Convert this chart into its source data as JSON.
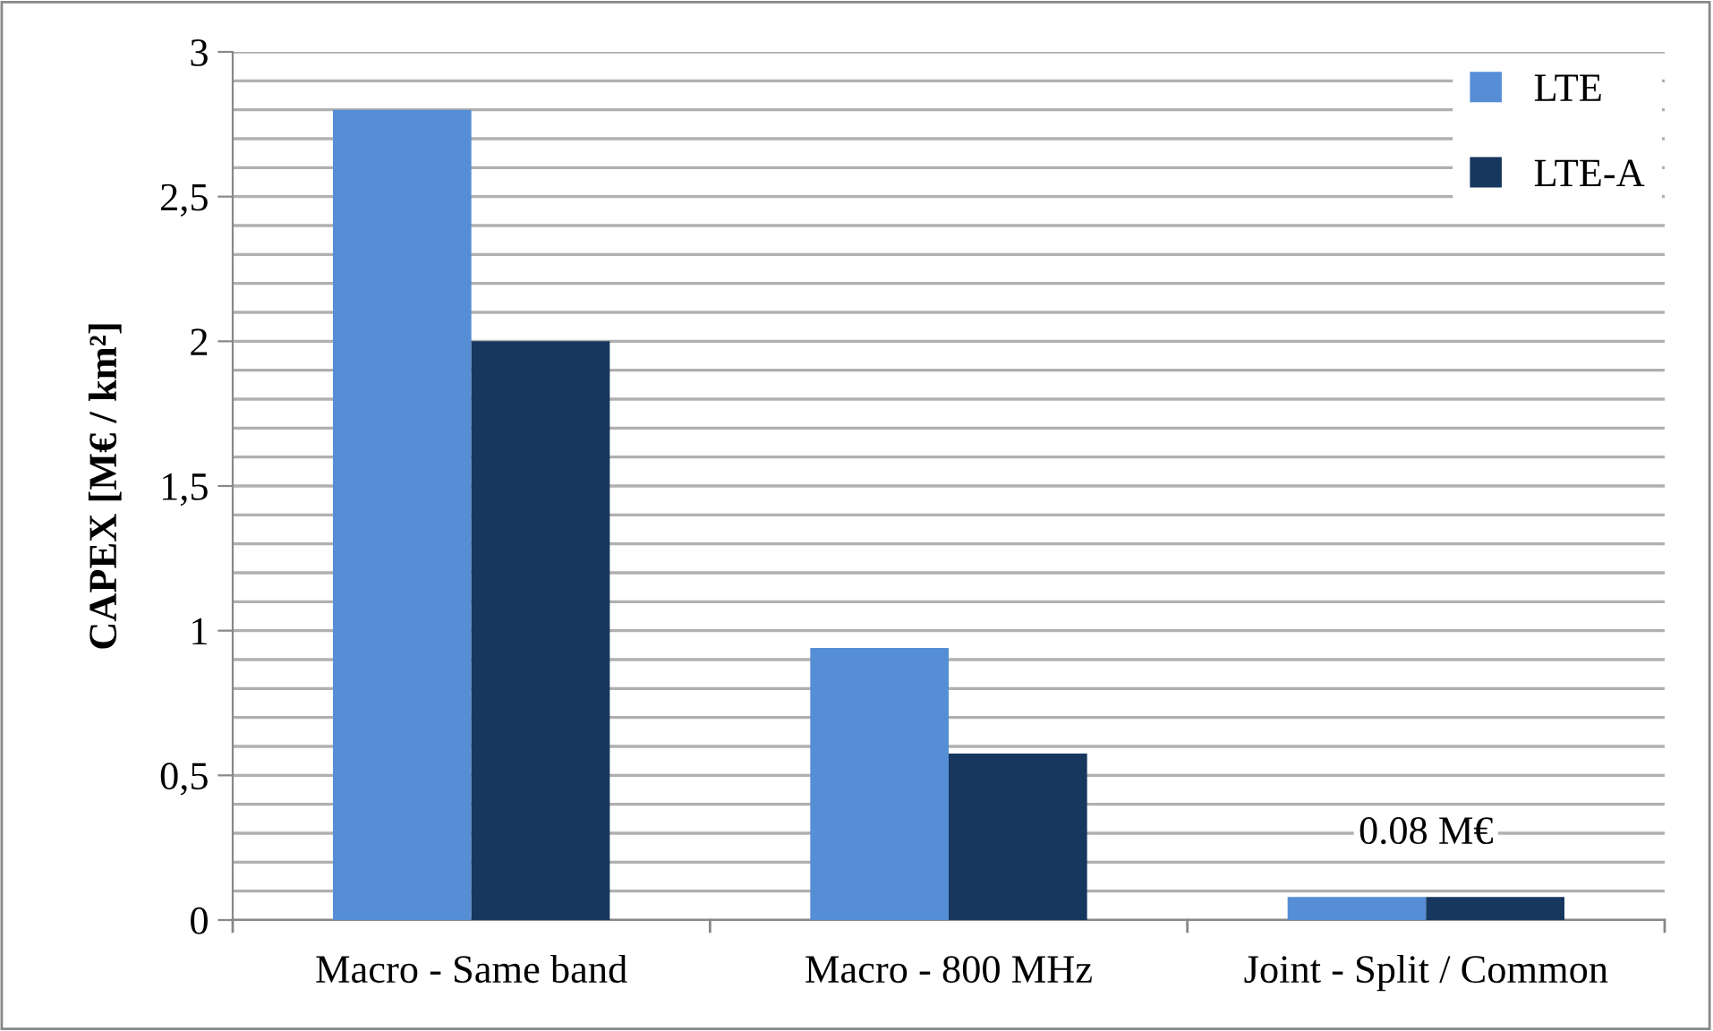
{
  "chart_data": {
    "type": "bar",
    "ylabel": "CAPEX [M€ / km²]",
    "categories": [
      "Macro - Same band",
      "Macro - 800 MHz",
      "Joint - Split / Common"
    ],
    "series": [
      {
        "name": "LTE",
        "color": "#558ed5",
        "values": [
          2.8,
          0.94,
          0.08
        ]
      },
      {
        "name": "LTE-A",
        "color": "#17375e",
        "values": [
          2.0,
          0.575,
          0.08
        ]
      }
    ],
    "ylim": [
      0,
      3
    ],
    "yticks": [
      {
        "value": 0,
        "label": "0"
      },
      {
        "value": 0.1,
        "label": null
      },
      {
        "value": 0.2,
        "label": null
      },
      {
        "value": 0.3,
        "label": null
      },
      {
        "value": 0.4,
        "label": null
      },
      {
        "value": 0.5,
        "label": "0,5"
      },
      {
        "value": 0.6,
        "label": null
      },
      {
        "value": 0.7,
        "label": null
      },
      {
        "value": 0.8,
        "label": null
      },
      {
        "value": 0.9,
        "label": null
      },
      {
        "value": 1,
        "label": "1"
      },
      {
        "value": 1.1,
        "label": null
      },
      {
        "value": 1.2,
        "label": null
      },
      {
        "value": 1.3,
        "label": null
      },
      {
        "value": 1.4,
        "label": null
      },
      {
        "value": 1.5,
        "label": "1,5"
      },
      {
        "value": 1.6,
        "label": null
      },
      {
        "value": 1.7,
        "label": null
      },
      {
        "value": 1.8,
        "label": null
      },
      {
        "value": 1.9,
        "label": null
      },
      {
        "value": 2,
        "label": "2"
      },
      {
        "value": 2.1,
        "label": null
      },
      {
        "value": 2.2,
        "label": null
      },
      {
        "value": 2.3,
        "label": null
      },
      {
        "value": 2.4,
        "label": null
      },
      {
        "value": 2.5,
        "label": "2,5"
      },
      {
        "value": 2.6,
        "label": null
      },
      {
        "value": 2.7,
        "label": null
      },
      {
        "value": 2.8,
        "label": null
      },
      {
        "value": 2.9,
        "label": null
      },
      {
        "value": 3,
        "label": "3"
      }
    ],
    "annotations": [
      {
        "text": "0.08 M€",
        "x": "Joint - Split / Common",
        "y": 0.08
      }
    ],
    "grid": "y",
    "legend": "top right"
  }
}
